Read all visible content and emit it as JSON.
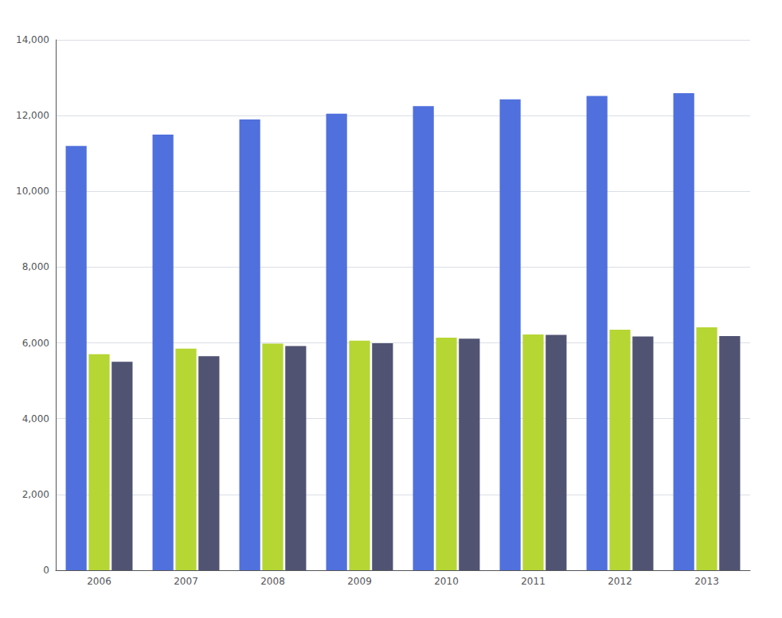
{
  "chart_data": {
    "type": "bar",
    "categories": [
      "2006",
      "2007",
      "2008",
      "2009",
      "2010",
      "2011",
      "2012",
      "2013"
    ],
    "series": [
      {
        "values": [
          11200,
          11500,
          11900,
          12050,
          12250,
          12430,
          12520,
          12592
        ]
      },
      {
        "values": [
          5700,
          5850,
          5980,
          6060,
          6140,
          6220,
          6350,
          6411
        ]
      },
      {
        "values": [
          5500,
          5650,
          5920,
          5990,
          6110,
          6210,
          6170,
          6181
        ]
      }
    ],
    "ylim": [
      0,
      14000
    ],
    "yticks": [
      0,
      2000,
      4000,
      6000,
      8000,
      10000,
      12000,
      14000
    ],
    "grid": true
  }
}
